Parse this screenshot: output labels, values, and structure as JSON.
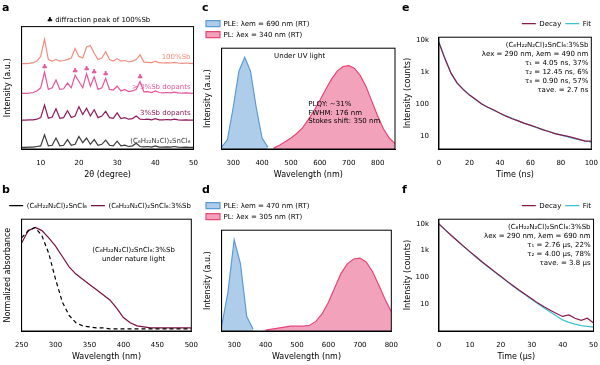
{
  "chart_data": [
    {
      "type": "line",
      "title": "a",
      "annotations": [
        "♣ diffraction peak of 100%Sb"
      ],
      "x_label": "2θ (degree)",
      "y_label": "Intensity (a.u.)",
      "x": [
        5,
        6,
        7,
        8,
        9,
        10,
        11,
        12,
        13,
        14,
        15,
        16,
        17,
        18,
        19,
        20,
        21,
        22,
        23,
        24,
        25,
        26,
        27,
        28,
        29,
        30,
        31,
        32,
        33,
        34,
        35,
        36,
        37,
        38,
        39,
        40,
        41,
        42,
        43,
        44,
        45,
        46,
        47,
        48,
        49,
        50
      ],
      "xlim": [
        5,
        50
      ],
      "xticks": [
        10,
        20,
        30,
        40,
        50
      ],
      "ylim": [
        0,
        3.9
      ],
      "tick_labels": "x",
      "grid": false,
      "legend": "inline",
      "series": [
        {
          "name": "100%Sb",
          "color": "#f28c7d",
          "values": [
            2.72,
            2.72,
            2.73,
            2.75,
            2.8,
            2.95,
            3.5,
            2.85,
            2.8,
            2.85,
            2.8,
            2.82,
            2.85,
            2.9,
            3.2,
            2.95,
            2.9,
            3.25,
            3.3,
            3.05,
            2.85,
            2.9,
            3.1,
            2.85,
            2.8,
            2.88,
            2.8,
            2.82,
            2.78,
            2.8,
            2.85,
            3.0,
            2.77,
            2.76,
            2.75,
            2.8,
            2.75,
            2.74,
            2.75,
            2.74,
            2.76,
            2.74,
            2.73,
            2.74,
            2.73,
            2.72
          ]
        },
        {
          "name": "> 3%Sb dopants",
          "color": "#e8559a",
          "values": [
            1.77,
            1.77,
            1.78,
            1.8,
            1.85,
            1.95,
            2.45,
            1.9,
            1.95,
            2.2,
            1.9,
            1.92,
            2.1,
            1.95,
            2.35,
            2.15,
            1.95,
            2.4,
            2.0,
            2.3,
            1.9,
            1.95,
            2.25,
            1.9,
            1.88,
            2.0,
            1.85,
            1.9,
            1.83,
            1.85,
            1.9,
            2.15,
            1.82,
            1.83,
            1.8,
            1.85,
            1.8,
            1.79,
            1.8,
            1.79,
            1.81,
            1.79,
            1.78,
            1.79,
            1.78,
            1.77
          ]
        },
        {
          "name": "3%Sb dopants",
          "color": "#8e1b5c",
          "values": [
            0.92,
            0.92,
            0.93,
            0.93,
            0.95,
            1.0,
            1.4,
            0.98,
            1.02,
            1.28,
            0.98,
            1.0,
            1.22,
            1.0,
            1.05,
            1.35,
            1.1,
            1.3,
            1.05,
            1.25,
            1.0,
            1.05,
            1.2,
            1.0,
            0.98,
            1.15,
            0.97,
            1.0,
            0.95,
            0.97,
            1.05,
            0.95,
            0.94,
            0.95,
            0.93,
            0.97,
            0.93,
            0.93,
            0.94,
            0.93,
            0.95,
            0.93,
            0.92,
            0.93,
            0.92,
            0.92
          ]
        },
        {
          "name": "(C₆H₂₂N₂Cl)₂SnCl₆",
          "color": "#3a3a3a",
          "values": [
            0.05,
            0.05,
            0.06,
            0.06,
            0.08,
            0.1,
            0.45,
            0.1,
            0.12,
            0.35,
            0.1,
            0.12,
            0.3,
            0.12,
            0.15,
            0.4,
            0.2,
            0.35,
            0.15,
            0.3,
            0.12,
            0.15,
            0.28,
            0.12,
            0.1,
            0.25,
            0.1,
            0.12,
            0.08,
            0.1,
            0.18,
            0.08,
            0.07,
            0.08,
            0.06,
            0.1,
            0.06,
            0.06,
            0.07,
            0.06,
            0.08,
            0.06,
            0.05,
            0.06,
            0.05,
            0.05
          ]
        }
      ],
      "peak_marks": {
        "symbol": "♣",
        "series": "> 3%Sb dopants",
        "x": [
          11,
          19,
          22,
          24,
          27,
          36
        ]
      }
    },
    {
      "type": "line",
      "title": "b",
      "annotations": [
        "(C₆H₂₂N₂Cl)₂SnCl₆:3%Sb",
        "under nature light"
      ],
      "x_label": "Wavelength (nm)",
      "y_label": "Normalized absorbance",
      "x": [
        250,
        260,
        270,
        280,
        290,
        300,
        310,
        320,
        330,
        340,
        350,
        360,
        370,
        380,
        390,
        400,
        410,
        420,
        430,
        440,
        450,
        460,
        470,
        480,
        490,
        500
      ],
      "xlim": [
        250,
        500
      ],
      "xticks": [
        250,
        300,
        350,
        400,
        450,
        500
      ],
      "ylim": [
        0,
        1.08
      ],
      "tick_labels": "x",
      "grid": false,
      "legend": "upper right",
      "series": [
        {
          "name": "(C₆H₂₂N₂Cl)₂SnCl₆",
          "color": "#000000",
          "line_style": "dashed",
          "values": [
            0.9,
            0.97,
            1.0,
            0.92,
            0.75,
            0.5,
            0.28,
            0.15,
            0.08,
            0.05,
            0.04,
            0.03,
            0.03,
            0.02,
            0.02,
            0.02,
            0.02,
            0.02,
            0.02,
            0.02,
            0.02,
            0.02,
            0.02,
            0.02,
            0.02,
            0.02
          ]
        },
        {
          "name": "(C₆H₂₂N₂Cl)₂SnCl₆:3%Sb",
          "color": "#7a1040",
          "line_style": "solid",
          "values": [
            0.85,
            0.97,
            1.0,
            0.97,
            0.9,
            0.82,
            0.72,
            0.62,
            0.55,
            0.5,
            0.45,
            0.4,
            0.35,
            0.3,
            0.22,
            0.13,
            0.08,
            0.05,
            0.04,
            0.03,
            0.03,
            0.03,
            0.03,
            0.03,
            0.03,
            0.03
          ]
        }
      ]
    },
    {
      "type": "line",
      "title": "c",
      "annotations": [
        "Under UV light",
        "PLQY: ~31%",
        "FWHM: 176 nm",
        "Stokes shift: 350 nm"
      ],
      "x_label": "Wavelength (nm)",
      "y_label": "Intensity (a.u.)",
      "x": [
        260,
        280,
        300,
        320,
        340,
        360,
        380,
        400,
        420,
        440,
        460,
        480,
        500,
        520,
        540,
        560,
        580,
        600,
        620,
        640,
        660,
        680,
        700,
        720,
        740,
        760,
        780,
        800,
        820,
        840,
        860
      ],
      "xlim": [
        260,
        860
      ],
      "xticks": [
        300,
        400,
        500,
        600,
        700,
        800
      ],
      "ylim": [
        0,
        1.1
      ],
      "tick_labels": "x",
      "grid": false,
      "legend": "upper left",
      "series": [
        {
          "name": "PLE: λem = 690 nm (RT)",
          "color": "#5b9bd5",
          "type": "area",
          "values": [
            0.02,
            0.1,
            0.45,
            0.85,
            1.0,
            0.85,
            0.45,
            0.12,
            0.02,
            null,
            null,
            null,
            null,
            null,
            null,
            null,
            null,
            null,
            null,
            null,
            null,
            null,
            null,
            null,
            null,
            null,
            null,
            null,
            null,
            null,
            null
          ]
        },
        {
          "name": "PL: λex = 340 nm (RT)",
          "color": "#e8457a",
          "type": "area",
          "values": [
            null,
            null,
            null,
            null,
            null,
            null,
            null,
            null,
            null,
            0.01,
            0.04,
            0.08,
            0.12,
            0.17,
            0.23,
            0.32,
            0.42,
            0.53,
            0.65,
            0.76,
            0.85,
            0.9,
            0.91,
            0.88,
            0.8,
            0.68,
            0.52,
            0.36,
            0.22,
            0.12,
            0.06
          ]
        }
      ]
    },
    {
      "type": "line",
      "title": "d",
      "x_label": "Wavelength (nm)",
      "y_label": "Intensity (a.u.)",
      "x": [
        260,
        280,
        300,
        320,
        340,
        360,
        380,
        400,
        420,
        440,
        460,
        480,
        500,
        520,
        540,
        560,
        580,
        600,
        620,
        640,
        660,
        680,
        700,
        720,
        740,
        760,
        780,
        800
      ],
      "xlim": [
        260,
        800
      ],
      "xticks": [
        300,
        400,
        500,
        600,
        700,
        800
      ],
      "ylim": [
        0,
        1.05
      ],
      "tick_labels": "x",
      "grid": false,
      "legend": "upper left",
      "series": [
        {
          "name": "PLE: λem = 470 nm (RT)",
          "color": "#5b9bd5",
          "type": "area",
          "values": [
            0.05,
            0.4,
            0.95,
            0.7,
            0.15,
            0.02,
            null,
            null,
            null,
            null,
            null,
            null,
            null,
            null,
            null,
            null,
            null,
            null,
            null,
            null,
            null,
            null,
            null,
            null,
            null,
            null,
            null,
            null
          ]
        },
        {
          "name": "PL: λex = 305 nm (RT)",
          "color": "#e8457a",
          "type": "area",
          "values": [
            null,
            null,
            null,
            null,
            null,
            null,
            null,
            0.01,
            0.02,
            0.03,
            0.04,
            0.05,
            0.05,
            0.05,
            0.06,
            0.1,
            0.18,
            0.3,
            0.45,
            0.6,
            0.7,
            0.75,
            0.76,
            0.72,
            0.62,
            0.48,
            0.33,
            0.2
          ]
        }
      ]
    },
    {
      "type": "line",
      "title": "e",
      "annotations": [
        "(C₆H₂₂N₂Cl)₂SnCl₆:3%Sb",
        "λex = 290 nm, λem = 490 nm",
        "τ₁ = 4.05 ns, 37%",
        "τ₂ = 12.45 ns, 6%",
        "τ₃ = 0.90 ns, 57%",
        "τave. = 2.7 ns"
      ],
      "x_label": "Time (ns)",
      "y_label": "Intensity (counts)",
      "log": "y",
      "x": [
        0,
        4,
        8,
        12,
        16,
        20,
        24,
        28,
        32,
        36,
        40,
        44,
        48,
        52,
        56,
        60,
        64,
        68,
        72,
        76,
        80,
        84,
        88,
        92,
        96,
        100
      ],
      "xlim": [
        0,
        100
      ],
      "xticks": [
        0,
        20,
        40,
        60,
        80,
        100
      ],
      "ylim": [
        4,
        12000
      ],
      "yticks": [
        10,
        100,
        {
          "value": 1000,
          "label": "1k"
        },
        {
          "value": 10000,
          "label": "10k"
        }
      ],
      "grid": false,
      "legend": "upper right",
      "series": [
        {
          "name": "Decay",
          "color": "#8b1a4a",
          "values": [
            8000,
            2500,
            900,
            450,
            280,
            190,
            140,
            100,
            80,
            65,
            52,
            42,
            35,
            30,
            25,
            22,
            19,
            16,
            14,
            12,
            11,
            10,
            9,
            8,
            7,
            7
          ]
        },
        {
          "name": "Fit",
          "color": "#3cc3d2",
          "values": [
            8500,
            2600,
            880,
            440,
            285,
            195,
            138,
            102,
            79,
            64,
            52,
            43,
            36,
            30,
            25.5,
            21.5,
            18.5,
            16,
            14,
            12.3,
            10.8,
            9.6,
            8.6,
            7.8,
            7.1,
            6.5
          ]
        }
      ]
    },
    {
      "type": "line",
      "title": "f",
      "annotations": [
        "(C₆H₂₂N₂Cl)₂SnCl₆:3%Sb",
        "λex = 290 nm, λem = 690 nm",
        "τ₁ = 2.76 μs, 22%",
        "τ₂ = 4.00 μs, 78%",
        "τave. = 3.8 μs"
      ],
      "x_label": "Time (μs)",
      "y_label": "Intensity (counts)",
      "log": "y",
      "x": [
        0,
        2,
        4,
        6,
        8,
        10,
        12,
        14,
        16,
        18,
        20,
        22,
        24,
        26,
        28,
        30,
        32,
        34,
        36,
        38,
        40,
        42,
        44,
        46,
        48,
        50
      ],
      "xlim": [
        0,
        50
      ],
      "xticks": [
        0,
        10,
        20,
        30,
        40,
        50
      ],
      "ylim": [
        1,
        15000
      ],
      "yticks": [
        10,
        100,
        {
          "value": 1000,
          "label": "1k"
        },
        {
          "value": 10000,
          "label": "10k"
        }
      ],
      "grid": false,
      "legend": "upper right",
      "series": [
        {
          "name": "Decay",
          "color": "#8b1a4a",
          "values": [
            10000,
            6000,
            3700,
            2300,
            1450,
            920,
            590,
            380,
            250,
            165,
            110,
            73,
            49,
            33,
            23,
            16,
            11,
            8,
            6,
            4.5,
            3.5,
            4,
            3,
            2.5,
            3,
            2
          ]
        },
        {
          "name": "Fit",
          "color": "#3cc3d2",
          "values": [
            9800,
            6100,
            3750,
            2320,
            1440,
            900,
            570,
            370,
            240,
            160,
            105,
            70,
            47,
            32,
            22,
            15,
            10.5,
            7.3,
            5.1,
            3.6,
            2.6,
            2.1,
            1.8,
            1.6,
            1.5,
            1.4
          ]
        }
      ]
    }
  ]
}
